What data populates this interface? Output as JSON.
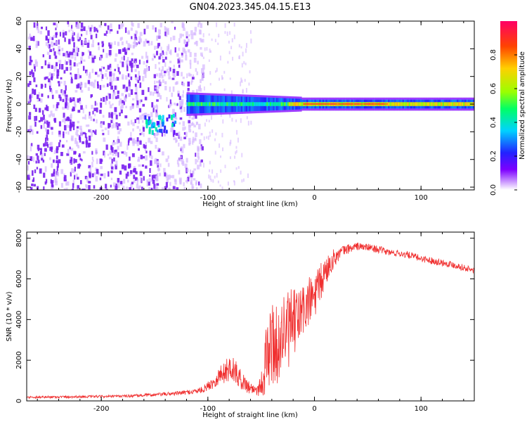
{
  "figure": {
    "title": "GN04.2023.345.04.15.E13"
  },
  "colors": {
    "snr_line": "#f03030",
    "noise_purple": "#7a20f0",
    "noise_light": "#d6b8ff",
    "colorbar_stops": [
      "#ffffff",
      "#7d00ff",
      "#2222ff",
      "#00d2ff",
      "#00ff66",
      "#9aff00",
      "#ffd000",
      "#ff4400",
      "#ff0066"
    ]
  },
  "chart_data": [
    {
      "type": "heatmap",
      "xlabel": "Height of straight line (km)",
      "ylabel": "Frequency (Hz)",
      "xlim": [
        -270,
        150
      ],
      "ylim": [
        -62,
        60
      ],
      "xticks": [
        -200,
        -100,
        0,
        100
      ],
      "xtick_labels": [
        "-200",
        "-100",
        "0",
        "100"
      ],
      "yticks": [
        -60,
        -40,
        -20,
        0,
        20,
        40,
        60
      ],
      "ytick_labels": [
        "-60",
        "-40",
        "-20",
        "0",
        "20",
        "40",
        "60"
      ],
      "grid": false,
      "colorbar": {
        "label": "Normalized spectral amplitude",
        "range": [
          0,
          1
        ],
        "ticks": [
          0,
          0.2,
          0.4,
          0.6,
          0.8
        ],
        "tick_labels": [
          "0.0",
          "0.2",
          "0.4",
          "0.6",
          "0.8"
        ]
      },
      "features": [
        {
          "region": "broadband noise",
          "x_range": [
            -270,
            -105
          ],
          "freq_range": [
            -60,
            60
          ],
          "amplitude": 0.1
        },
        {
          "region": "sparse noise",
          "x_range": [
            -105,
            -60
          ],
          "freq_range": [
            -60,
            60
          ],
          "amplitude": 0.03
        },
        {
          "region": "low-frequency signal",
          "x_range": [
            -120,
            150
          ],
          "center_freq": 0,
          "amplitude_range": [
            0.3,
            0.95
          ]
        },
        {
          "region": "descending streak",
          "x_range": [
            -160,
            -130
          ],
          "center_freq": -13,
          "amplitude": 0.3
        }
      ]
    },
    {
      "type": "line",
      "xlabel": "Height of straight line (km)",
      "ylabel": "SNR (10 * v/v)",
      "xlim": [
        -270,
        150
      ],
      "ylim": [
        0,
        8300
      ],
      "xticks": [
        -200,
        -100,
        0,
        100
      ],
      "xtick_labels": [
        "-200",
        "-100",
        "0",
        "100"
      ],
      "yticks": [
        0,
        2000,
        4000,
        6000,
        8000
      ],
      "ytick_labels": [
        "0",
        "2000",
        "4000",
        "6000",
        "8000"
      ],
      "grid": false,
      "series": [
        {
          "x": [
            -270,
            -250,
            -230,
            -210,
            -190,
            -170,
            -150,
            -130,
            -115,
            -105,
            -95,
            -88,
            -82,
            -78,
            -74,
            -70,
            -66,
            -62,
            -58,
            -54,
            -50,
            -46,
            -42,
            -38,
            -34,
            -30,
            -26,
            -22,
            -18,
            -14,
            -10,
            -6,
            -2,
            2,
            6,
            10,
            15,
            20,
            25,
            30,
            40,
            50,
            60,
            70,
            80,
            90,
            100,
            110,
            120,
            130,
            140,
            150
          ],
          "y": [
            180,
            190,
            200,
            210,
            220,
            250,
            300,
            370,
            450,
            550,
            900,
            1300,
            1500,
            1700,
            1400,
            1100,
            900,
            700,
            600,
            550,
            800,
            1800,
            2600,
            3000,
            2500,
            3500,
            3300,
            3700,
            3900,
            4200,
            4500,
            4800,
            5000,
            5300,
            5800,
            6300,
            6800,
            7100,
            7300,
            7450,
            7600,
            7550,
            7450,
            7300,
            7250,
            7150,
            7000,
            6900,
            6800,
            6700,
            6550,
            6400
          ],
          "noise_amplitude": [
            60,
            60,
            60,
            60,
            60,
            70,
            80,
            100,
            120,
            160,
            300,
            500,
            600,
            700,
            600,
            500,
            400,
            350,
            300,
            300,
            600,
            1600,
            2000,
            2300,
            1600,
            2200,
            2000,
            1800,
            1600,
            1600,
            1400,
            1300,
            1200,
            1100,
            1000,
            800,
            600,
            400,
            300,
            250,
            200,
            180,
            180,
            170,
            170,
            170,
            170,
            170,
            170,
            170,
            160,
            160
          ]
        }
      ]
    }
  ]
}
